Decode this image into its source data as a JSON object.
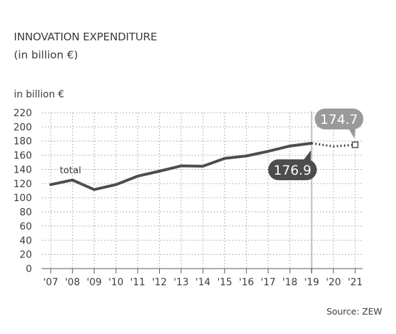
{
  "chart_data": {
    "type": "line",
    "title": "INNOVATION EXPENDITURE",
    "subtitle": "(in billion €)",
    "ylabel": "in billion €",
    "ylim": [
      0,
      220
    ],
    "yticks": [
      "0",
      "20",
      "40",
      "60",
      "80",
      "100",
      "120",
      "140",
      "160",
      "180",
      "200",
      "220"
    ],
    "categories": [
      "'07",
      "'08",
      "'09",
      "'10",
      "'11",
      "'12",
      "'13",
      "'14",
      "'15",
      "'16",
      "'17",
      "'18",
      "'19",
      "'20",
      "'21"
    ],
    "grid": true,
    "series": [
      {
        "name": "total",
        "style": "solid",
        "x": [
          "'07",
          "'08",
          "'09",
          "'10",
          "'11",
          "'12",
          "'13",
          "'14",
          "'15",
          "'16",
          "'17",
          "'18",
          "'19"
        ],
        "values": [
          118.5,
          125.0,
          111.5,
          118.5,
          130.5,
          137.5,
          145.0,
          144.5,
          155.5,
          159.0,
          165.5,
          173.0,
          176.9
        ]
      },
      {
        "name": "",
        "style": "dotted",
        "x": [
          "'19",
          "'20",
          "'21"
        ],
        "values": [
          176.9,
          172.5,
          174.7
        ]
      }
    ],
    "annotations": [
      {
        "text": "176.9",
        "x": "'19",
        "value": 176.9
      },
      {
        "text": "174.7",
        "x": "'21",
        "value": 174.7
      }
    ],
    "source": "Source: ZEW",
    "colors": {
      "line": "#4d4d4d",
      "grid": "#9a9a9a",
      "callout_dark": "#4d4d4d",
      "callout_light": "#9a9a9a",
      "vline": "#bdbdbd"
    }
  }
}
